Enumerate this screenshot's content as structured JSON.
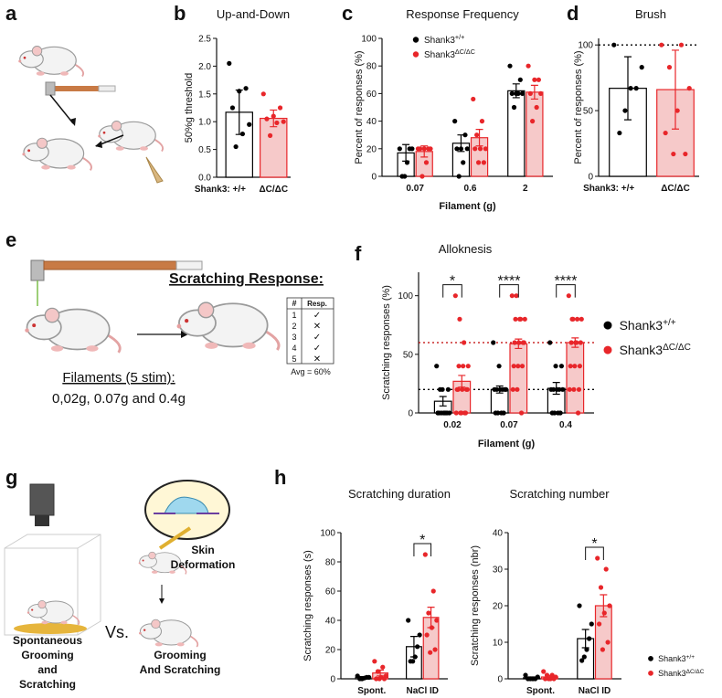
{
  "panel_labels": [
    "a",
    "b",
    "c",
    "d",
    "e",
    "f",
    "g",
    "h"
  ],
  "panel_e": {
    "heading": "Scratching Response:",
    "table": {
      "header": [
        "#",
        "Resp."
      ],
      "rows": [
        [
          "1",
          "✓"
        ],
        [
          "2",
          "✕"
        ],
        [
          "3",
          "✓"
        ],
        [
          "4",
          "✓"
        ],
        [
          "5",
          "✕"
        ]
      ]
    },
    "average": "Avg = 60%",
    "filament_lines": [
      "Filaments (5 stim):",
      "0,02g, 0.07g and 0.4g"
    ]
  },
  "panel_g": {
    "left_caption": [
      "Spontaneous",
      "Grooming",
      "and",
      "Scratching"
    ],
    "versus": "Vs.",
    "inset_caption": [
      "Skin",
      "Deformation"
    ],
    "bottom_caption": [
      "Grooming",
      "And Scratching"
    ]
  },
  "chart_data": [
    {
      "type": "bar",
      "title": "Up-and-Down",
      "ylabel": "50%g threshold",
      "group_label": "Shank3:",
      "categories": [
        "+/+",
        "ΔC/ΔC"
      ],
      "series": [
        {
          "color": "#000000",
          "fill": "#ffffff",
          "values": [
            1.17,
            null
          ],
          "errors": [
            0.4,
            null
          ],
          "points": [
            [
              2.05,
              1.6,
              1.55,
              1.25,
              0.95,
              0.78,
              0.55
            ],
            null
          ]
        },
        {
          "color": "#e8262a",
          "fill": "#f6c9c9",
          "values": [
            null,
            1.06
          ],
          "errors": [
            null,
            0.15
          ],
          "points": [
            null,
            [
              1.5,
              1.25,
              1.1,
              1.05,
              1.0,
              0.98,
              0.75
            ]
          ]
        }
      ],
      "ylim": [
        0,
        2.5
      ],
      "yticks": [
        {
          "value": 0,
          "label": "0.0"
        },
        0.5,
        {
          "value": 1,
          "label": "1.0"
        },
        1.5,
        {
          "value": 2,
          "label": "2.0"
        },
        2.5
      ]
    },
    {
      "type": "bar",
      "title": "Response Frequency",
      "ylabel": "Percent of responses (%)",
      "xlabel": "Filament (g)",
      "categories": [
        "0.07",
        "0.6",
        "2"
      ],
      "legend": "upper left",
      "series": [
        {
          "name": "Shank3",
          "name_sup": "+/+",
          "color": "#000000",
          "fill": "#ffffff",
          "values": [
            17,
            24,
            62
          ],
          "errors": [
            6,
            6,
            5
          ],
          "points": [
            [
              20,
              20,
              20,
              10,
              0,
              0
            ],
            [
              40,
              30,
              20,
              20,
              20,
              10,
              0
            ],
            [
              80,
              70,
              60,
              60,
              60,
              60,
              50
            ]
          ]
        },
        {
          "name": "Shank3",
          "name_sup": "ΔC/ΔC",
          "color": "#e8262a",
          "fill": "#f6c9c9",
          "values": [
            18,
            28,
            61
          ],
          "errors": [
            4,
            6,
            5
          ],
          "points": [
            [
              20,
              20,
              20,
              20,
              20,
              10,
              0
            ],
            [
              56,
              40,
              30,
              20,
              20,
              20,
              10,
              10
            ],
            [
              80,
              70,
              70,
              60,
              60,
              50,
              40
            ]
          ]
        }
      ],
      "ylim": [
        0,
        100
      ],
      "yticks": [
        0,
        20,
        40,
        60,
        80,
        100
      ]
    },
    {
      "type": "bar",
      "title": "Brush",
      "ylabel": "Percent of responses (%)",
      "group_label": "Shank3:",
      "categories": [
        "+/+",
        "ΔC/ΔC"
      ],
      "series": [
        {
          "color": "#000000",
          "fill": "#ffffff",
          "values": [
            67,
            null
          ],
          "errors": [
            24,
            null
          ],
          "points": [
            [
              100,
              83,
              67,
              67,
              50,
              33
            ],
            null
          ]
        },
        {
          "color": "#e8262a",
          "fill": "#f6c9c9",
          "values": [
            null,
            66
          ],
          "errors": [
            null,
            30
          ],
          "points": [
            null,
            [
              100,
              100,
              83,
              67,
              50,
              33,
              17,
              17
            ]
          ]
        }
      ],
      "ref_lines": [
        {
          "value": 100,
          "color": "#000000"
        }
      ],
      "ylim": [
        0,
        105
      ],
      "yticks": [
        0,
        50,
        100
      ]
    },
    {
      "type": "bar",
      "title": "Alloknesis",
      "ylabel": "Scratching responses (%)",
      "xlabel": "Filament (g)",
      "categories": [
        "0.02",
        "0.07",
        "0.4"
      ],
      "legend": "right",
      "significance": [
        "*",
        "****",
        "****"
      ],
      "series": [
        {
          "name": "Shank3",
          "name_sup": "+/+",
          "color": "#000000",
          "fill": "#ffffff",
          "values": [
            10,
            20,
            21
          ],
          "errors": [
            4,
            3,
            5
          ],
          "points": [
            [
              40,
              20,
              20,
              20,
              0,
              0,
              0,
              0,
              0,
              0,
              0,
              0
            ],
            [
              60,
              40,
              20,
              20,
              20,
              20,
              20,
              20,
              0,
              0,
              0,
              0
            ],
            [
              60,
              40,
              40,
              20,
              20,
              20,
              20,
              20,
              0,
              0,
              0,
              0
            ]
          ]
        },
        {
          "name": "Shank3",
          "name_sup": "ΔC/ΔC",
          "color": "#e8262a",
          "fill": "#f6c9c9",
          "values": [
            27,
            59,
            60
          ],
          "errors": [
            5,
            4,
            4
          ],
          "points": [
            [
              100,
              80,
              60,
              40,
              40,
              40,
              20,
              20,
              20,
              20,
              20,
              0,
              0,
              0,
              0,
              0
            ],
            [
              100,
              100,
              80,
              80,
              80,
              80,
              60,
              60,
              60,
              60,
              40,
              40,
              40,
              20,
              20,
              0
            ],
            [
              100,
              80,
              80,
              80,
              80,
              60,
              60,
              60,
              60,
              40,
              40,
              40,
              20,
              20,
              20,
              0
            ]
          ]
        }
      ],
      "ref_lines": [
        {
          "value": 20,
          "color": "#000000"
        },
        {
          "value": 60,
          "color": "#c00000"
        }
      ],
      "ylim": [
        0,
        120
      ],
      "yticks": [
        0,
        50,
        100
      ]
    },
    {
      "type": "bar",
      "title": "Scratching duration",
      "ylabel": "Scratching responses (s)",
      "categories": [
        "Spont.",
        "NaCl ID"
      ],
      "significance": [
        null,
        "*"
      ],
      "series": [
        {
          "color": "#000000",
          "fill": "#ffffff",
          "values": [
            1,
            22
          ],
          "errors": [
            0.5,
            7
          ],
          "points": [
            [
              2,
              1,
              1,
              0.5,
              0,
              0
            ],
            [
              40,
              30,
              22,
              15,
              12,
              12
            ]
          ]
        },
        {
          "color": "#e8262a",
          "fill": "#f6c9c9",
          "values": [
            4,
            42
          ],
          "errors": [
            2,
            7
          ],
          "points": [
            [
              12,
              8,
              5,
              2,
              1,
              0,
              0,
              0
            ],
            [
              85,
              60,
              45,
              40,
              35,
              30,
              20,
              18
            ]
          ]
        }
      ],
      "ylim": [
        0,
        100
      ],
      "yticks": [
        0,
        20,
        40,
        60,
        80,
        100
      ]
    },
    {
      "type": "bar",
      "title": "Scratching number",
      "ylabel": "Scratching responses (nbr)",
      "categories": [
        "Spont.",
        "NaCl ID"
      ],
      "legend": "right",
      "significance": [
        null,
        "*"
      ],
      "series": [
        {
          "name": "Shank3",
          "name_sup": "+/+",
          "color": "#000000",
          "fill": "#ffffff",
          "values": [
            0.3,
            11
          ],
          "errors": [
            0.2,
            2.5
          ],
          "points": [
            [
              1,
              0.5,
              0,
              0,
              0,
              0
            ],
            [
              20,
              15,
              11,
              8,
              6,
              5
            ]
          ]
        },
        {
          "name": "Shank3",
          "name_sup": "ΔC/ΔC",
          "color": "#e8262a",
          "fill": "#f6c9c9",
          "values": [
            0.5,
            20
          ],
          "errors": [
            0.4,
            3
          ],
          "points": [
            [
              2,
              1,
              1,
              0.5,
              0,
              0,
              0,
              0
            ],
            [
              33,
              30,
              25,
              20,
              18,
              15,
              10,
              8
            ]
          ]
        }
      ],
      "ylim": [
        0,
        40
      ],
      "yticks": [
        0,
        10,
        20,
        30,
        40
      ]
    }
  ]
}
